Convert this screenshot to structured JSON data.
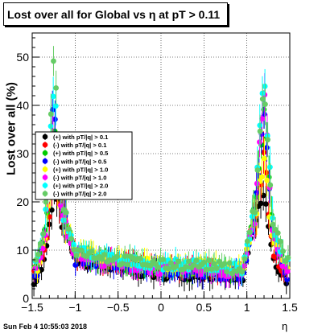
{
  "title": "Lost over all for Global vs   η at pT > 0.11",
  "datestamp": "Sun Feb  4 10:55:03 2018",
  "chart_data": {
    "type": "scatter",
    "title": "Lost over all for Global vs   η at pT > 0.11",
    "xlabel": "η",
    "ylabel": "Lost over all (%)",
    "xlim": [
      -1.5,
      1.5
    ],
    "ylim": [
      0,
      55
    ],
    "grid": true,
    "legend_placement": "left",
    "x_ticks": [
      -1.5,
      -1,
      -0.5,
      0,
      0.5,
      1,
      1.5
    ],
    "x_tick_labels": [
      "−1.5",
      "−1",
      "−0.5",
      "0",
      "0.5",
      "1",
      "1.5"
    ],
    "y_ticks": [
      0,
      10,
      20,
      30,
      40,
      50
    ],
    "y_tick_labels": [
      "0",
      "10",
      "20",
      "30",
      "40",
      "50"
    ],
    "series": [
      {
        "name": "(+) with pT/|q| > 0.1",
        "color": "#000000",
        "profile": [
          4,
          8,
          22,
          16,
          8,
          6,
          5,
          5,
          4,
          16,
          22,
          8,
          4
        ]
      },
      {
        "name": "(-) with pT/|q| > 0.1",
        "color": "#ff0000",
        "profile": [
          5,
          10,
          27,
          18,
          9,
          7,
          6,
          6,
          5,
          18,
          29,
          10,
          5
        ]
      },
      {
        "name": "(+) with pT/|q| > 0.5",
        "color": "#00cc00",
        "profile": [
          6,
          14,
          37,
          19,
          9,
          7,
          6,
          6,
          5,
          19,
          38,
          14,
          6
        ]
      },
      {
        "name": "(-) with pT/|q| > 0.5",
        "color": "#0000ff",
        "profile": [
          5,
          13,
          41,
          19,
          8,
          7,
          6,
          5,
          5,
          18,
          40,
          13,
          5
        ]
      },
      {
        "name": "(+) with pT/|q| > 1.0",
        "color": "#ffff00",
        "profile": [
          6,
          12,
          30,
          17,
          10,
          8,
          7,
          7,
          6,
          17,
          30,
          12,
          6
        ]
      },
      {
        "name": "(-) with pT/|q| > 1.0",
        "color": "#ff00ff",
        "profile": [
          6,
          13,
          35,
          18,
          9,
          7,
          6,
          6,
          5,
          18,
          44,
          13,
          6
        ]
      },
      {
        "name": "(+) with pT/|q| > 2.0",
        "color": "#00ffff",
        "profile": [
          7,
          15,
          45,
          19,
          10,
          8,
          7,
          7,
          6,
          19,
          49,
          15,
          7
        ]
      },
      {
        "name": "(-) with pT/|q| > 2.0",
        "color": "#66cc66",
        "profile": [
          8,
          16,
          51,
          20,
          10,
          8,
          7,
          7,
          6,
          20,
          45,
          16,
          8
        ]
      }
    ],
    "profile_x": [
      -1.45,
      -1.35,
      -1.25,
      -1.15,
      -1.0,
      -0.5,
      0.0,
      0.5,
      0.95,
      1.1,
      1.2,
      1.3,
      1.45
    ]
  }
}
